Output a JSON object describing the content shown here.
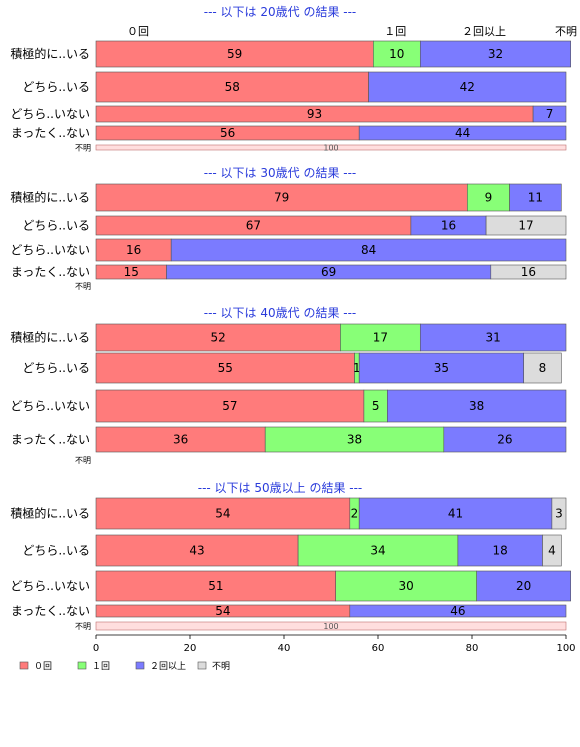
{
  "chart_data": {
    "type": "bar",
    "orientation": "horizontal",
    "stacked": true,
    "xlim": [
      0,
      100
    ],
    "xticks": [
      0,
      20,
      40,
      60,
      80,
      100
    ],
    "column_headers": [
      "０回",
      "１回",
      "２回以上",
      "不明"
    ],
    "series": [
      {
        "name": "０回",
        "color": "#ff7b7b"
      },
      {
        "name": "１回",
        "color": "#88ff77"
      },
      {
        "name": "２回以上",
        "color": "#7b7bff"
      },
      {
        "name": "不明",
        "color": "#dcdcdc"
      }
    ],
    "panels": [
      {
        "title": "--- 以下は 20歳代 の結果 ---",
        "rows": [
          {
            "label": "積極的に..いる",
            "values": [
              59,
              10,
              32,
              0
            ]
          },
          {
            "label": "どちら..いる",
            "values": [
              58,
              0,
              42,
              0
            ]
          },
          {
            "label": "どちら..いない",
            "values": [
              93,
              0,
              7,
              0
            ]
          },
          {
            "label": "まったく..ない",
            "values": [
              56,
              0,
              44,
              0
            ]
          },
          {
            "label": "不明",
            "values": [
              0,
              0,
              0,
              100
            ]
          }
        ]
      },
      {
        "title": "--- 以下は 30歳代 の結果 ---",
        "rows": [
          {
            "label": "積極的に..いる",
            "values": [
              79,
              9,
              11,
              0
            ]
          },
          {
            "label": "どちら..いる",
            "values": [
              67,
              0,
              16,
              17
            ]
          },
          {
            "label": "どちら..いない",
            "values": [
              16,
              0,
              84,
              0
            ]
          },
          {
            "label": "まったく..ない",
            "values": [
              15,
              0,
              69,
              16
            ]
          },
          {
            "label": "不明",
            "values": [
              0,
              0,
              0,
              0
            ]
          }
        ]
      },
      {
        "title": "--- 以下は 40歳代 の結果 ---",
        "rows": [
          {
            "label": "積極的に..いる",
            "values": [
              52,
              17,
              31,
              0
            ]
          },
          {
            "label": "どちら..いる",
            "values": [
              55,
              1,
              35,
              8
            ]
          },
          {
            "label": "どちら..いない",
            "values": [
              57,
              5,
              38,
              0
            ]
          },
          {
            "label": "まったく..ない",
            "values": [
              36,
              38,
              26,
              0
            ]
          },
          {
            "label": "不明",
            "values": [
              0,
              0,
              0,
              0
            ]
          }
        ]
      },
      {
        "title": "--- 以下は 50歳以上 の結果 ---",
        "rows": [
          {
            "label": "積極的に..いる",
            "values": [
              54,
              2,
              41,
              3
            ]
          },
          {
            "label": "どちら..いる",
            "values": [
              43,
              34,
              18,
              4
            ]
          },
          {
            "label": "どちら..いない",
            "values": [
              51,
              30,
              20,
              0
            ]
          },
          {
            "label": "まったく..ない",
            "values": [
              54,
              0,
              46,
              0
            ]
          },
          {
            "label": "不明",
            "values": [
              0,
              0,
              0,
              100
            ]
          }
        ]
      }
    ],
    "legend": {
      "placement": "bottom-left"
    }
  }
}
